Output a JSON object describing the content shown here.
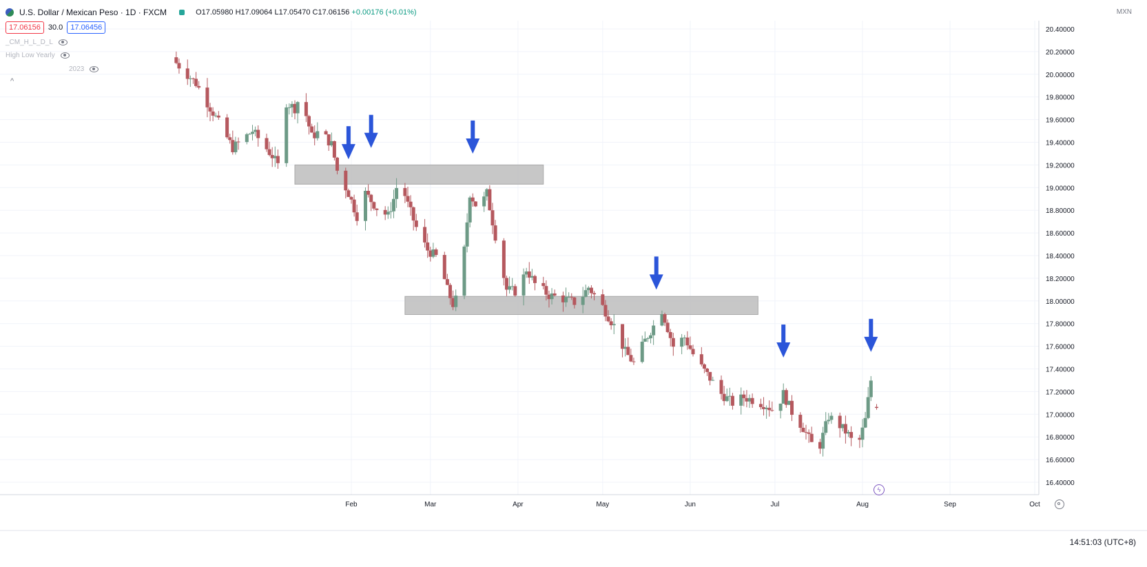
{
  "header": {
    "symbol": "U.S. Dollar / Mexican Peso · 1D · FXCM",
    "ohlc_open": "O17.05980",
    "ohlc_high": "H17.09064",
    "ohlc_low": "L17.05470",
    "ohlc_close": "C17.06156",
    "ohlc_change": "+0.00176 (+0.01%)",
    "sell_price": "17.06156",
    "spread": "30.0",
    "buy_price": "17.06456",
    "currency": "MXN",
    "indicators": [
      "_CM_H_L_D_L",
      "High Low Yearly",
      "2023"
    ]
  },
  "footer": {
    "clock": "14:51:03 (UTC+8)"
  },
  "colors": {
    "up": "#6d9a86",
    "down": "#b5585e",
    "zone": "#bdbdbd",
    "arrow": "#2b55d9"
  },
  "icons": [
    "flag-icon",
    "eye-icon",
    "chevron-up-icon",
    "bolt-icon",
    "gear-icon",
    "down-arrow-icon"
  ],
  "chart_data": {
    "type": "candlestick",
    "ylim": [
      16.4,
      20.4
    ],
    "y_ticks": [
      "20.40000",
      "20.20000",
      "20.00000",
      "19.80000",
      "19.60000",
      "19.40000",
      "19.20000",
      "19.00000",
      "18.80000",
      "18.60000",
      "18.40000",
      "18.20000",
      "18.00000",
      "17.80000",
      "17.60000",
      "17.40000",
      "17.20000",
      "17.00000",
      "16.80000",
      "16.60000",
      "16.40000"
    ],
    "x_ticks": [
      {
        "label": "Feb",
        "date": "2023-02-01"
      },
      {
        "label": "Mar",
        "date": "2023-03-01"
      },
      {
        "label": "Apr",
        "date": "2023-04-01"
      },
      {
        "label": "May",
        "date": "2023-05-01"
      },
      {
        "label": "Jun",
        "date": "2023-06-01"
      },
      {
        "label": "Jul",
        "date": "2023-07-01"
      },
      {
        "label": "Aug",
        "date": "2023-08-01"
      },
      {
        "label": "Sep",
        "date": "2023-09-01"
      },
      {
        "label": "Oct",
        "date": "2023-10-01"
      }
    ],
    "anchors": [
      {
        "date": "2022-12-01",
        "close": 20.1
      },
      {
        "date": "2022-12-08",
        "close": 19.92
      },
      {
        "date": "2022-12-15",
        "close": 19.62
      },
      {
        "date": "2022-12-21",
        "close": 19.35
      },
      {
        "date": "2022-12-28",
        "close": 19.5
      },
      {
        "date": "2023-01-04",
        "close": 19.28
      },
      {
        "date": "2023-01-07",
        "close": 19.15
      },
      {
        "date": "2023-01-09",
        "close": 19.75
      },
      {
        "date": "2023-01-12",
        "close": 19.7
      },
      {
        "date": "2023-01-14",
        "close": 19.82
      },
      {
        "date": "2023-01-18",
        "close": 19.45
      },
      {
        "date": "2023-01-21",
        "close": 19.5
      },
      {
        "date": "2023-01-25",
        "close": 19.38
      },
      {
        "date": "2023-01-27",
        "close": 19.15
      },
      {
        "date": "2023-01-31",
        "close": 18.95
      },
      {
        "date": "2023-02-03",
        "close": 18.75
      },
      {
        "date": "2023-02-06",
        "close": 18.95
      },
      {
        "date": "2023-02-10",
        "close": 18.82
      },
      {
        "date": "2023-02-14",
        "close": 18.75
      },
      {
        "date": "2023-02-16",
        "close": 18.9
      },
      {
        "date": "2023-02-18",
        "close": 19.1
      },
      {
        "date": "2023-02-21",
        "close": 18.85
      },
      {
        "date": "2023-02-25",
        "close": 18.58
      },
      {
        "date": "2023-02-28",
        "close": 18.45
      },
      {
        "date": "2023-03-04",
        "close": 18.37
      },
      {
        "date": "2023-03-07",
        "close": 18.1
      },
      {
        "date": "2023-03-09",
        "close": 17.97
      },
      {
        "date": "2023-03-11",
        "close": 18.05
      },
      {
        "date": "2023-03-13",
        "close": 18.45
      },
      {
        "date": "2023-03-15",
        "close": 18.95
      },
      {
        "date": "2023-03-18",
        "close": 18.8
      },
      {
        "date": "2023-03-21",
        "close": 18.95
      },
      {
        "date": "2023-03-25",
        "close": 18.45
      },
      {
        "date": "2023-03-28",
        "close": 18.1
      },
      {
        "date": "2023-04-01",
        "close": 18.08
      },
      {
        "date": "2023-04-04",
        "close": 18.28
      },
      {
        "date": "2023-04-07",
        "close": 18.15
      },
      {
        "date": "2023-04-12",
        "close": 18.05
      },
      {
        "date": "2023-04-17",
        "close": 18.02
      },
      {
        "date": "2023-04-22",
        "close": 17.98
      },
      {
        "date": "2023-04-26",
        "close": 18.12
      },
      {
        "date": "2023-05-01",
        "close": 17.95
      },
      {
        "date": "2023-05-05",
        "close": 17.78
      },
      {
        "date": "2023-05-09",
        "close": 17.55
      },
      {
        "date": "2023-05-12",
        "close": 17.45
      },
      {
        "date": "2023-05-16",
        "close": 17.65
      },
      {
        "date": "2023-05-19",
        "close": 17.78
      },
      {
        "date": "2023-05-22",
        "close": 17.92
      },
      {
        "date": "2023-05-26",
        "close": 17.6
      },
      {
        "date": "2023-05-30",
        "close": 17.68
      },
      {
        "date": "2023-06-03",
        "close": 17.48
      },
      {
        "date": "2023-06-07",
        "close": 17.35
      },
      {
        "date": "2023-06-12",
        "close": 17.18
      },
      {
        "date": "2023-06-16",
        "close": 17.1
      },
      {
        "date": "2023-06-20",
        "close": 17.15
      },
      {
        "date": "2023-06-24",
        "close": 17.12
      },
      {
        "date": "2023-06-28",
        "close": 17.08
      },
      {
        "date": "2023-07-01",
        "close": 17.02
      },
      {
        "date": "2023-07-04",
        "close": 17.18
      },
      {
        "date": "2023-07-07",
        "close": 17.02
      },
      {
        "date": "2023-07-11",
        "close": 16.88
      },
      {
        "date": "2023-07-14",
        "close": 16.74
      },
      {
        "date": "2023-07-17",
        "close": 16.73
      },
      {
        "date": "2023-07-20",
        "close": 16.98
      },
      {
        "date": "2023-07-24",
        "close": 16.9
      },
      {
        "date": "2023-07-27",
        "close": 16.82
      },
      {
        "date": "2023-07-30",
        "close": 16.68
      },
      {
        "date": "2023-08-02",
        "close": 16.95
      },
      {
        "date": "2023-08-04",
        "close": 17.3
      },
      {
        "date": "2023-08-06",
        "close": 17.06
      }
    ],
    "zones": [
      {
        "from": "2023-01-12",
        "to": "2023-04-10",
        "low": 19.03,
        "high": 19.2
      },
      {
        "from": "2023-02-20",
        "to": "2023-06-25",
        "low": 17.88,
        "high": 18.04
      }
    ],
    "markers": [
      {
        "type": "down-arrow",
        "date": "2023-01-31",
        "price": 19.25
      },
      {
        "type": "down-arrow",
        "date": "2023-02-08",
        "price": 19.35
      },
      {
        "type": "down-arrow",
        "date": "2023-03-16",
        "price": 19.3
      },
      {
        "type": "down-arrow",
        "date": "2023-05-20",
        "price": 18.1
      },
      {
        "type": "down-arrow",
        "date": "2023-07-04",
        "price": 17.5
      },
      {
        "type": "down-arrow",
        "date": "2023-08-04",
        "price": 17.55
      }
    ]
  }
}
